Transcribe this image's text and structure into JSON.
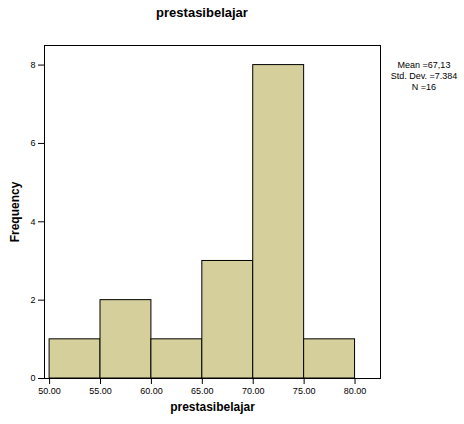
{
  "chart_data": {
    "type": "histogram",
    "title": "prestasibelajar",
    "xlabel": "prestasibelajar",
    "ylabel": "Frequency",
    "bins": [
      50,
      55,
      60,
      65,
      70,
      75,
      80
    ],
    "values": [
      1,
      2,
      1,
      3,
      8,
      1
    ],
    "color": "#d5cf9c",
    "xlim": [
      49.5,
      82.5
    ],
    "xticks": [
      {
        "value": 50,
        "label": "50.00"
      },
      {
        "value": 55,
        "label": "55.00"
      },
      {
        "value": 60,
        "label": "60.00"
      },
      {
        "value": 65,
        "label": "65.00"
      },
      {
        "value": 70,
        "label": "70.00"
      },
      {
        "value": 75,
        "label": "75.00"
      },
      {
        "value": 80,
        "label": "80.00"
      }
    ],
    "ylim": [
      0,
      8.5
    ],
    "yticks": [
      0,
      2,
      4,
      6,
      8
    ],
    "grid": false,
    "annotations": [
      "Mean =67,13",
      "Std. Dev. =7.384",
      "N =16"
    ]
  }
}
